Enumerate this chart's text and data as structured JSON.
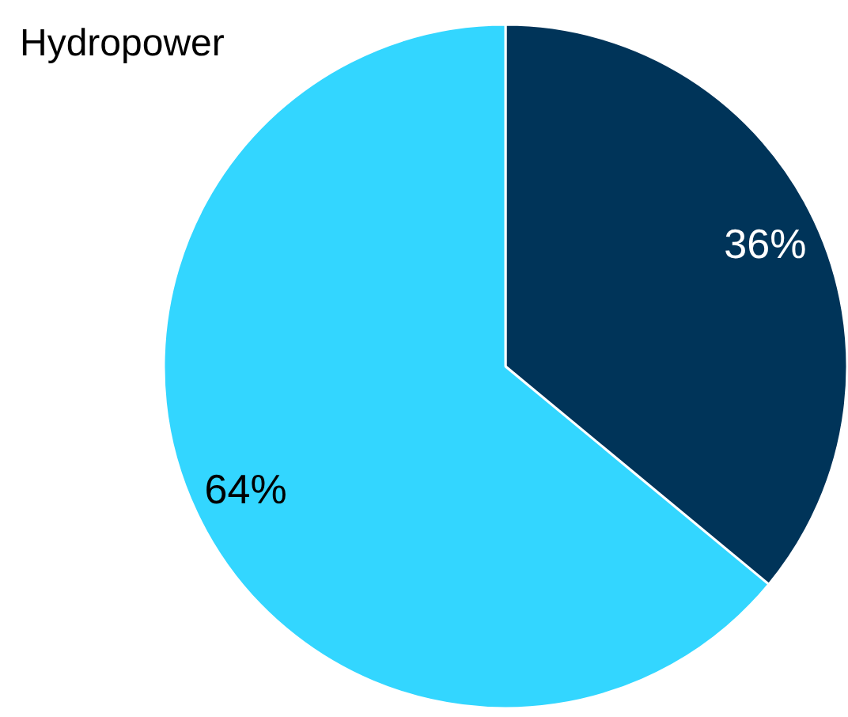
{
  "chart_data": {
    "type": "pie",
    "title": "Hydropower",
    "categories": [
      null,
      null
    ],
    "values": [
      36,
      64
    ],
    "colors": [
      "#003459",
      "#33d6ff"
    ],
    "value_labels": [
      "36%",
      "64%"
    ]
  }
}
